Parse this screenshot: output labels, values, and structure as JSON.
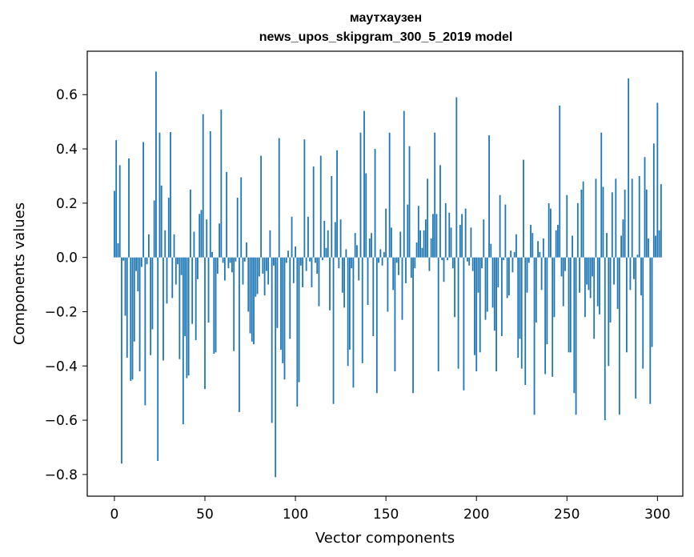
{
  "chart_data": {
    "type": "bar",
    "title": "маутхаузен",
    "subtitle": "news_upos_skipgram_300_5_2019 model",
    "xlabel": "Vector components",
    "ylabel": "Components values",
    "xlim": [
      -15,
      314
    ],
    "ylim": [
      -0.88,
      0.76
    ],
    "xticks": [
      0,
      50,
      100,
      150,
      200,
      250,
      300
    ],
    "yticks": [
      -0.8,
      -0.6,
      -0.4,
      -0.2,
      0.0,
      0.2,
      0.4,
      0.6
    ],
    "ytick_labels": [
      "−0.8",
      "−0.6",
      "−0.4",
      "−0.2",
      "0.0",
      "0.2",
      "0.4",
      "0.6"
    ],
    "grid": false,
    "color": "#1f77b4",
    "values": [
      0.245,
      0.432,
      0.052,
      0.34,
      -0.76,
      -0.012,
      -0.215,
      -0.37,
      0.365,
      -0.455,
      -0.45,
      -0.31,
      -0.05,
      -0.125,
      -0.42,
      -0.035,
      0.425,
      -0.545,
      -0.025,
      0.085,
      -0.36,
      -0.265,
      0.21,
      0.685,
      -0.75,
      0.46,
      0.265,
      -0.38,
      0.1,
      -0.17,
      0.22,
      0.462,
      -0.15,
      0.085,
      -0.1,
      -0.025,
      -0.375,
      -0.065,
      -0.615,
      -0.29,
      -0.445,
      -0.435,
      0.25,
      -0.245,
      0.095,
      -0.305,
      -0.08,
      0.16,
      0.175,
      0.528,
      -0.485,
      0.14,
      -0.24,
      0.465,
      0.02,
      -0.355,
      -0.35,
      -0.06,
      0.125,
      0.545,
      -0.02,
      -0.085,
      0.315,
      -0.04,
      -0.02,
      -0.055,
      -0.345,
      -0.015,
      0.22,
      -0.57,
      0.295,
      -0.1,
      -0.015,
      0.055,
      -0.2,
      -0.28,
      -0.31,
      -0.32,
      -0.145,
      -0.135,
      -0.07,
      0.375,
      -0.06,
      -0.14,
      -0.05,
      -0.1,
      0.1,
      -0.61,
      -0.03,
      -0.81,
      -0.26,
      0.44,
      -0.34,
      -0.39,
      -0.45,
      -0.02,
      0.025,
      -0.3,
      0.15,
      -0.095,
      0.04,
      -0.55,
      -0.46,
      -0.03,
      -0.11,
      0.435,
      -0.05,
      0.15,
      -0.015,
      -0.11,
      0.335,
      -0.02,
      -0.06,
      -0.18,
      0.375,
      -0.01,
      0.135,
      0.035,
      0.1,
      -0.195,
      0.3,
      -0.54,
      0.13,
      0.395,
      -0.04,
      0.14,
      -0.13,
      -0.185,
      0.03,
      -0.4,
      -0.34,
      -0.04,
      -0.48,
      0.09,
      0.045,
      -0.085,
      0.46,
      -0.39,
      0.54,
      0.31,
      -0.175,
      0.07,
      0.09,
      -0.29,
      0.4,
      -0.5,
      -0.02,
      0.03,
      -0.03,
      0.02,
      0.18,
      -0.2,
      0.46,
      0.11,
      -0.12,
      -0.42,
      -0.02,
      -0.065,
      0.095,
      -0.23,
      0.54,
      -0.095,
      0.195,
      0.41,
      -0.075,
      -0.5,
      -0.04,
      0.055,
      0.19,
      0.1,
      0.035,
      0.1,
      0.14,
      0.29,
      -0.05,
      0.07,
      0.16,
      0.46,
      0.16,
      -0.42,
      0.34,
      -0.01,
      -0.09,
      0.2,
      -0.01,
      0.165,
      0.11,
      -0.04,
      -0.22,
      0.59,
      -0.41,
      0.12,
      0.16,
      -0.49,
      0.18,
      -0.015,
      -0.03,
      0.11,
      -0.05,
      -0.36,
      -0.42,
      -0.13,
      -0.35,
      -0.04,
      0.14,
      -0.23,
      -0.2,
      0.45,
      0.05,
      -0.185,
      -0.27,
      -0.42,
      -0.11,
      0.23,
      -0.29,
      -0.01,
      0.195,
      -0.15,
      -0.14,
      0.025,
      -0.055,
      0.02,
      0.085,
      -0.37,
      -0.3,
      -0.41,
      0.36,
      -0.47,
      -0.13,
      -0.02,
      0.12,
      0.09,
      -0.58,
      -0.24,
      0.06,
      0.02,
      -0.12,
      0.07,
      -0.43,
      -0.32,
      0.2,
      0.18,
      -0.44,
      -0.22,
      0.1,
      0.12,
      0.56,
      -0.07,
      -0.18,
      -0.05,
      0.23,
      -0.35,
      -0.35,
      0.08,
      -0.5,
      -0.58,
      0.2,
      -0.13,
      0.25,
      0.28,
      -0.22,
      -0.1,
      -0.12,
      -0.15,
      -0.07,
      -0.3,
      0.29,
      -0.18,
      -0.21,
      0.46,
      0.26,
      -0.6,
      0.09,
      -0.4,
      -0.24,
      0.24,
      -0.1,
      0.29,
      -0.19,
      -0.58,
      0.08,
      0.14,
      0.25,
      -0.35,
      0.66,
      -0.12,
      0.29,
      -0.08,
      -0.52,
      0.01,
      0.3,
      -0.14,
      -0.41,
      0.37,
      0.25,
      0.07,
      -0.54,
      -0.33,
      0.42,
      0.08,
      0.57,
      0.1,
      0.27
    ]
  }
}
